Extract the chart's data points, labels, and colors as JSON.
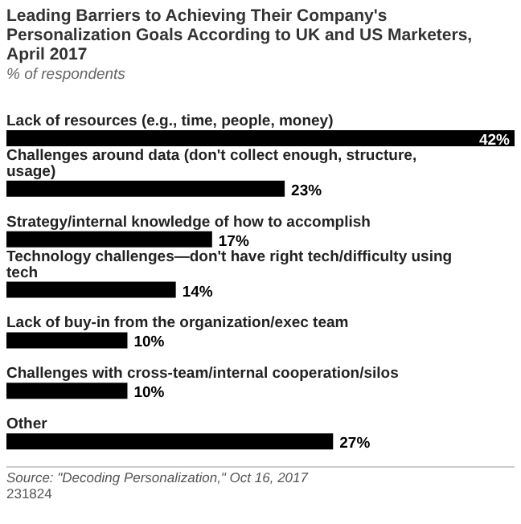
{
  "chart_data": {
    "type": "bar",
    "orientation": "horizontal",
    "title": "Leading Barriers to Achieving Their Company's Personalization Goals According to UK and US Marketers, April 2017",
    "subtitle": "% of respondents",
    "categories": [
      "Lack of resources (e.g., time, people, money)",
      "Challenges around data (don't collect enough, structure, usage)",
      "Strategy/internal knowledge of how to accomplish",
      "Technology challenges—don't have right tech/difficulty using tech",
      "Lack of buy-in from the organization/exec team",
      "Challenges with cross-team/internal cooperation/silos",
      "Other"
    ],
    "values": [
      42,
      23,
      17,
      14,
      10,
      10,
      27
    ],
    "value_labels": [
      "42%",
      "23%",
      "17%",
      "14%",
      "10%",
      "10%",
      "27%"
    ],
    "color": "#000000",
    "annotations": [
      "Source: \"Decoding Personalization,\" Oct 16, 2017",
      "231824"
    ]
  }
}
